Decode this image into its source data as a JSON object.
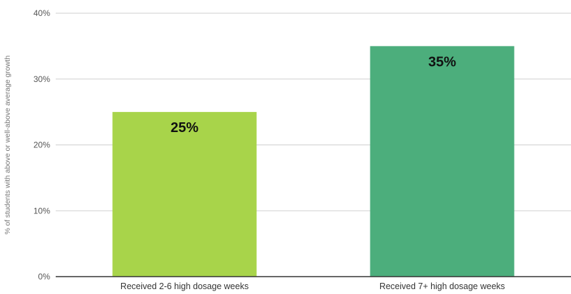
{
  "chart_data": {
    "type": "bar",
    "title": "",
    "xlabel": "",
    "ylabel": "% of students with above or well-above average growth",
    "categories": [
      "Received 2-6 high dosage weeks",
      "Received 7+ high dosage weeks"
    ],
    "values": [
      25,
      35
    ],
    "value_labels": [
      "25%",
      "35%"
    ],
    "bar_colors": [
      "#a8d44a",
      "#4cae7c"
    ],
    "ylim": [
      0,
      40
    ],
    "yticks": [
      0,
      10,
      20,
      30,
      40
    ],
    "ytick_labels": [
      "0%",
      "10%",
      "20%",
      "30%",
      "40%"
    ],
    "grid": true,
    "legend": "none"
  }
}
